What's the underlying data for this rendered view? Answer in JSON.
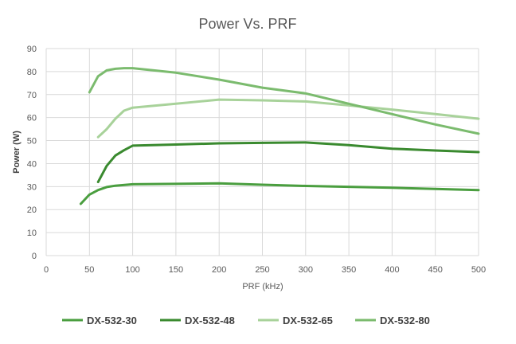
{
  "chart_data": {
    "type": "line",
    "title": "Power Vs. PRF",
    "xlabel": "PRF (kHz)",
    "ylabel": "Power (W)",
    "xlim": [
      0,
      500
    ],
    "ylim": [
      0,
      90
    ],
    "xticks": [
      0,
      50,
      100,
      150,
      200,
      250,
      300,
      350,
      400,
      450,
      500
    ],
    "yticks": [
      0,
      10,
      20,
      30,
      40,
      50,
      60,
      70,
      80,
      90
    ],
    "grid": true,
    "legend_position": "bottom",
    "series": [
      {
        "name": "DX-532-30",
        "color": "#4a9e3f",
        "x": [
          40,
          50,
          60,
          70,
          80,
          100,
          150,
          200,
          250,
          300,
          350,
          400,
          450,
          500
        ],
        "y": [
          22.5,
          26.5,
          28.5,
          29.8,
          30.4,
          31.0,
          31.2,
          31.4,
          30.8,
          30.3,
          29.9,
          29.5,
          29.0,
          28.5
        ]
      },
      {
        "name": "DX-532-48",
        "color": "#3a8a2f",
        "x": [
          60,
          70,
          80,
          90,
          100,
          150,
          200,
          250,
          300,
          350,
          400,
          450,
          500
        ],
        "y": [
          32.0,
          39.0,
          43.5,
          45.8,
          47.8,
          48.3,
          48.8,
          49.0,
          49.2,
          48.0,
          46.5,
          45.7,
          45.0
        ]
      },
      {
        "name": "DX-532-65",
        "color": "#a8d29a",
        "x": [
          60,
          70,
          80,
          90,
          100,
          150,
          200,
          250,
          300,
          350,
          400,
          450,
          500
        ],
        "y": [
          51.5,
          55.0,
          59.5,
          63.0,
          64.3,
          66.0,
          67.8,
          67.5,
          67.0,
          65.3,
          63.5,
          61.5,
          59.5
        ]
      },
      {
        "name": "DX-532-80",
        "color": "#7bbb6e",
        "x": [
          50,
          60,
          70,
          80,
          90,
          100,
          150,
          200,
          250,
          300,
          350,
          400,
          450,
          500
        ],
        "y": [
          71.0,
          78.0,
          80.5,
          81.2,
          81.5,
          81.5,
          79.5,
          76.5,
          73.0,
          70.5,
          66.0,
          61.5,
          57.0,
          53.0
        ]
      }
    ]
  }
}
